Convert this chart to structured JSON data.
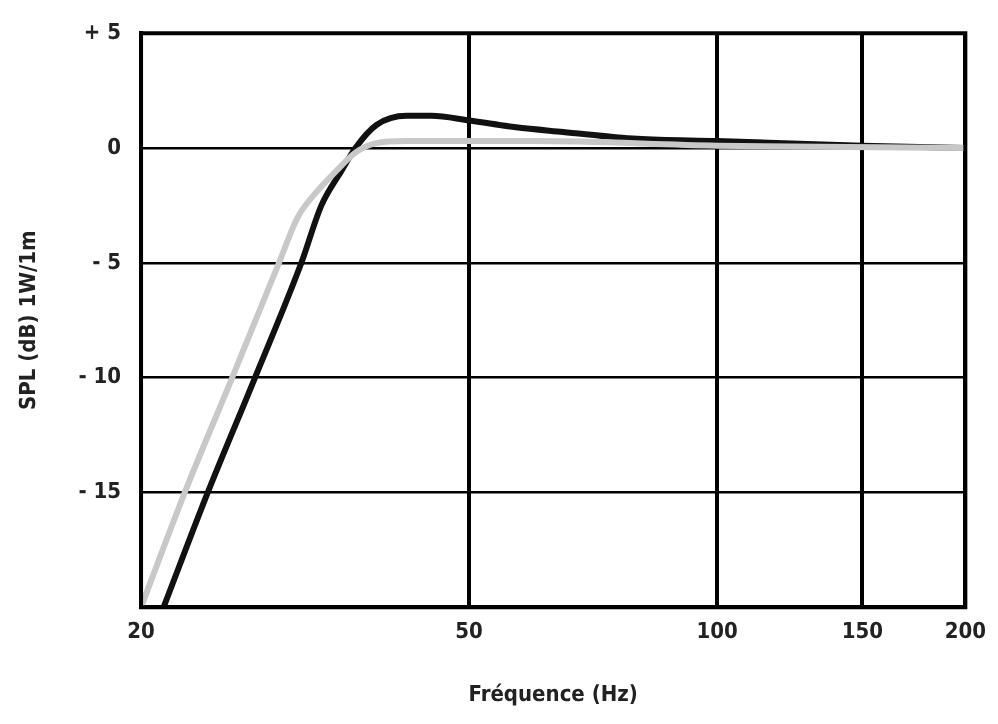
{
  "chart_data": {
    "type": "line",
    "xlabel": "Fréquence (Hz)",
    "ylabel": "SPL (dB) 1W/1m",
    "log": "x",
    "xlim": [
      20,
      200
    ],
    "xticks": [
      20,
      50,
      100,
      150,
      200
    ],
    "ylim": [
      -20,
      5
    ],
    "yticks": [
      {
        "value": 5,
        "label": "+ 5"
      },
      0,
      {
        "value": -5,
        "label": "- 5"
      },
      {
        "value": -10,
        "label": "- 10"
      },
      {
        "value": -15,
        "label": "- 15"
      }
    ],
    "grid": true,
    "legend": false,
    "marker": "none",
    "line_style": "solid",
    "series": [
      {
        "color": "#c8c8c8",
        "x": [
          20,
          22.6,
          25.8,
          29.4,
          31,
          32.5,
          34.5,
          36.4,
          38.5,
          42,
          60,
          100,
          200
        ],
        "values": [
          -20,
          -15,
          -10,
          -5,
          -3,
          -2,
          -1,
          -0.2,
          0.2,
          0.3,
          0.3,
          0.1,
          0
        ]
      },
      {
        "color": "#111111",
        "x": [
          21.3,
          24.1,
          27.5,
          31.3,
          33.1,
          35,
          36.4,
          38.6,
          42,
          45,
          50,
          57,
          65,
          80,
          100,
          150,
          200
        ],
        "values": [
          -20,
          -15,
          -10,
          -5,
          -2.5,
          -1,
          0,
          1,
          1.4,
          1.4,
          1.2,
          0.9,
          0.7,
          0.4,
          0.3,
          0.1,
          0
        ]
      }
    ]
  }
}
